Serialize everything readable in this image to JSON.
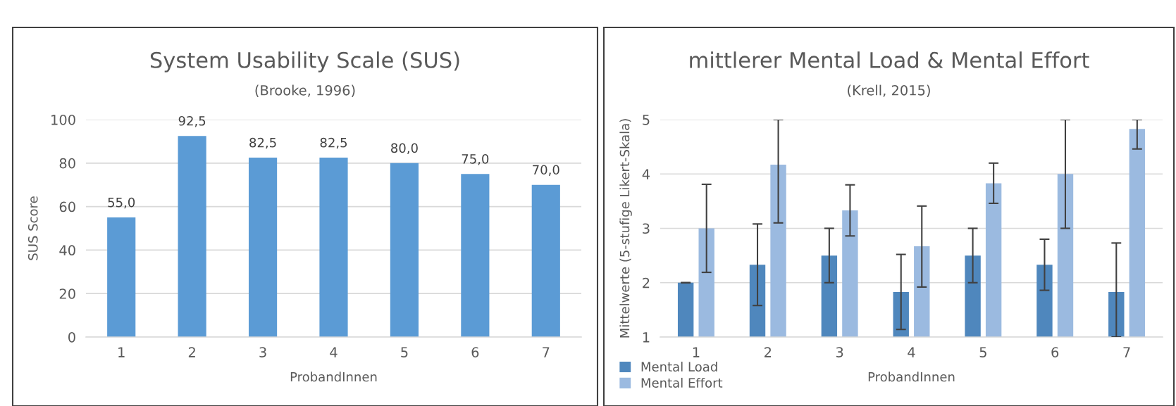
{
  "chart_data": [
    {
      "type": "bar",
      "title": "System Usability Scale (SUS)",
      "subtitle": "(Brooke, 1996)",
      "xlabel": "ProbandInnen",
      "ylabel": "SUS Score",
      "categories": [
        "1",
        "2",
        "3",
        "4",
        "5",
        "6",
        "7"
      ],
      "values": [
        55,
        92.5,
        82.5,
        82.5,
        80,
        75,
        70
      ],
      "value_labels": [
        "55,0",
        "92,5",
        "82,5",
        "82,5",
        "80,0",
        "75,0",
        "70,0"
      ],
      "color": "#5b9bd5",
      "ylim": [
        0,
        100
      ],
      "yticks": [
        0,
        20,
        40,
        60,
        80,
        100
      ],
      "grid": "y",
      "legend": false
    },
    {
      "type": "bar",
      "title": "mittlerer Mental Load & Mental Effort",
      "subtitle": "(Krell, 2015)",
      "xlabel": "ProbandInnen",
      "ylabel": "Mittelwerte (5-stufige Likert-Skala)",
      "categories": [
        "1",
        "2",
        "3",
        "4",
        "5",
        "6",
        "7"
      ],
      "series": [
        {
          "name": "Mental Load",
          "color": "#4f87bd",
          "values": [
            2.0,
            2.33,
            2.5,
            1.83,
            2.5,
            2.33,
            1.83
          ],
          "errors": [
            0,
            0.75,
            0.5,
            0.69,
            0.5,
            0.47,
            [
              1.0,
              2.73
            ]
          ]
        },
        {
          "name": "Mental Effort",
          "color": "#9bbae0",
          "values": [
            3.0,
            4.17,
            3.33,
            2.67,
            3.83,
            4.0,
            4.83
          ],
          "errors": [
            0.81,
            [
              3.1,
              5.0
            ],
            [
              2.86,
              3.8
            ],
            [
              1.92,
              3.41
            ],
            [
              3.46,
              4.2
            ],
            [
              3.0,
              5.0
            ],
            [
              4.46,
              5.0
            ]
          ]
        }
      ],
      "ylim": [
        1,
        5
      ],
      "yticks": [
        1,
        2,
        3,
        4,
        5
      ],
      "grid": "y",
      "legend": "bottom left"
    }
  ]
}
